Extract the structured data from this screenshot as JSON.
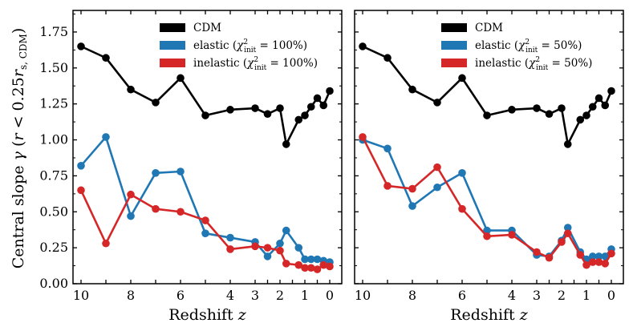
{
  "chart_data": [
    {
      "type": "line",
      "panel": "left",
      "xlabel": "Redshift z",
      "ylabel": "Central slope γ (r < 0.25r_s, CDM)",
      "ylim": [
        0,
        1.9
      ],
      "yticks": [
        "0.00",
        "0.25",
        "0.50",
        "0.75",
        "1.00",
        "1.25",
        "1.50",
        "1.75"
      ],
      "xticks": [
        "10",
        "8",
        "6",
        "4",
        "3",
        "2",
        "1",
        "0"
      ],
      "legend": [
        "CDM",
        "elastic (χ²init = 100%)",
        "inelastic (χ²init = 100%)"
      ],
      "x": [
        10,
        9,
        8,
        7,
        6,
        5,
        4,
        3,
        2.5,
        2,
        1.75,
        1.25,
        1,
        0.75,
        0.5,
        0.25,
        0
      ],
      "series": [
        {
          "name": "CDM",
          "color": "#000000",
          "values": [
            1.65,
            1.57,
            1.35,
            1.26,
            1.43,
            1.17,
            1.21,
            1.22,
            1.18,
            1.22,
            0.97,
            1.14,
            1.17,
            1.23,
            1.29,
            1.24,
            1.34
          ]
        },
        {
          "name": "elastic (χ²init = 100%)",
          "color": "#1f77b4",
          "values": [
            0.82,
            1.02,
            0.47,
            0.77,
            0.78,
            0.35,
            0.32,
            0.29,
            0.19,
            0.28,
            0.37,
            0.25,
            0.17,
            0.17,
            0.17,
            0.16,
            0.15
          ]
        },
        {
          "name": "inelastic (χ²init = 100%)",
          "color": "#d62728",
          "values": [
            0.65,
            0.28,
            0.62,
            0.52,
            0.5,
            0.44,
            0.24,
            0.26,
            0.25,
            0.23,
            0.14,
            0.13,
            0.11,
            0.11,
            0.1,
            0.13,
            0.12
          ]
        }
      ]
    },
    {
      "type": "line",
      "panel": "right",
      "xlabel": "Redshift z",
      "ylabel": "",
      "ylim": [
        0,
        1.9
      ],
      "xticks": [
        "10",
        "8",
        "6",
        "4",
        "3",
        "2",
        "1",
        "0"
      ],
      "legend": [
        "CDM",
        "elastic (χ²init = 50%)",
        "inelastic (χ²init = 50%)"
      ],
      "x": [
        10,
        9,
        8,
        7,
        6,
        5,
        4,
        3,
        2.5,
        2,
        1.75,
        1.25,
        1,
        0.75,
        0.5,
        0.25,
        0
      ],
      "series": [
        {
          "name": "CDM",
          "color": "#000000",
          "values": [
            1.65,
            1.57,
            1.35,
            1.26,
            1.43,
            1.17,
            1.21,
            1.22,
            1.18,
            1.22,
            0.97,
            1.14,
            1.17,
            1.23,
            1.29,
            1.24,
            1.34
          ]
        },
        {
          "name": "elastic (χ²init = 50%)",
          "color": "#1f77b4",
          "values": [
            1.0,
            0.94,
            0.54,
            0.67,
            0.77,
            0.37,
            0.37,
            0.2,
            0.19,
            0.3,
            0.39,
            0.22,
            0.17,
            0.19,
            0.19,
            0.19,
            0.24
          ]
        },
        {
          "name": "inelastic (χ²init = 50%)",
          "color": "#d62728",
          "values": [
            1.02,
            0.68,
            0.66,
            0.81,
            0.52,
            0.33,
            0.34,
            0.22,
            0.18,
            0.29,
            0.35,
            0.2,
            0.13,
            0.15,
            0.15,
            0.14,
            0.21
          ]
        }
      ]
    }
  ]
}
